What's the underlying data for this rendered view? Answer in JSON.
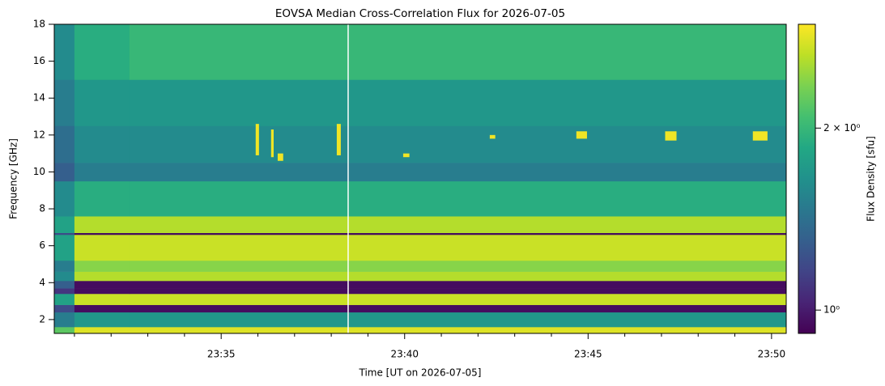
{
  "chart_data": {
    "type": "heatmap",
    "title": "EOVSA Median Cross-Correlation Flux for 2026-07-05",
    "x_label": "Time [UT on 2026-07-05]",
    "y_label": "Frequency [GHz]",
    "colorbar_label": "Flux Density [sfu]",
    "colormap": "viridis",
    "color_scale": "log",
    "xlim": [
      1410.45,
      1430.4
    ],
    "xticks": [
      {
        "value": 1415,
        "label": "23:35"
      },
      {
        "value": 1420,
        "label": "23:40"
      },
      {
        "value": 1425,
        "label": "23:45"
      },
      {
        "value": 1430,
        "label": "23:50"
      }
    ],
    "xminorticks": [
      1411,
      1412,
      1413,
      1414,
      1416,
      1417,
      1418,
      1419,
      1421,
      1422,
      1423,
      1424,
      1426,
      1427,
      1428,
      1429
    ],
    "ylim": [
      1.25,
      18
    ],
    "yticks": [
      2,
      4,
      6,
      8,
      10,
      12,
      14,
      16,
      18
    ],
    "clim": [
      0.915,
      2.97
    ],
    "cticks": [
      {
        "value": 1,
        "label": "10⁰"
      },
      {
        "value": 2,
        "label": "2 × 10⁰"
      }
    ],
    "time_edges": [
      1410.45,
      1411,
      1412.5,
      1430.4
    ],
    "freq_edges": [
      1.25,
      1.6,
      2.4,
      2.8,
      3.4,
      3.7,
      4.1,
      4.6,
      5.2,
      6.6,
      6.7,
      7.6,
      9.5,
      10.5,
      12.5,
      15,
      18
    ],
    "z": [
      [
        2.2,
        2.8,
        2.8
      ],
      [
        1.5,
        1.7,
        1.7
      ],
      [
        1.2,
        0.95,
        0.95
      ],
      [
        1.8,
        2.7,
        2.7
      ],
      [
        1.1,
        0.95,
        0.95
      ],
      [
        1.3,
        0.95,
        0.95
      ],
      [
        1.6,
        2.6,
        2.6
      ],
      [
        1.5,
        2.4,
        2.4
      ],
      [
        1.8,
        2.7,
        2.7
      ],
      [
        1.2,
        0.95,
        0.95
      ],
      [
        1.8,
        2.6,
        2.6
      ],
      [
        1.6,
        1.9,
        1.9
      ],
      [
        1.3,
        1.5,
        1.5
      ],
      [
        1.4,
        1.6,
        1.6
      ],
      [
        1.5,
        1.7,
        1.7
      ],
      [
        1.6,
        1.9,
        2.0
      ]
    ],
    "bursts": [
      {
        "t": [
          1415.94,
          1416.03
        ],
        "f": [
          10.9,
          12.6
        ],
        "value": 2.9
      },
      {
        "t": [
          1416.36,
          1416.43
        ],
        "f": [
          10.8,
          12.3
        ],
        "value": 2.9
      },
      {
        "t": [
          1416.54,
          1416.69
        ],
        "f": [
          10.6,
          11.0
        ],
        "value": 2.9
      },
      {
        "t": [
          1418.15,
          1418.26
        ],
        "f": [
          10.9,
          12.6
        ],
        "value": 2.9
      },
      {
        "t": [
          1419.96,
          1420.13
        ],
        "f": [
          10.8,
          11.0
        ],
        "value": 2.9
      },
      {
        "t": [
          1422.32,
          1422.47
        ],
        "f": [
          11.8,
          12.0
        ],
        "value": 2.9
      },
      {
        "t": [
          1424.68,
          1424.97
        ],
        "f": [
          11.8,
          12.2
        ],
        "value": 2.9
      },
      {
        "t": [
          1427.1,
          1427.41
        ],
        "f": [
          11.7,
          12.2
        ],
        "value": 2.9
      },
      {
        "t": [
          1429.49,
          1429.89
        ],
        "f": [
          11.7,
          12.2
        ],
        "value": 2.9
      }
    ],
    "gap_times": [
      1418.46
    ]
  }
}
